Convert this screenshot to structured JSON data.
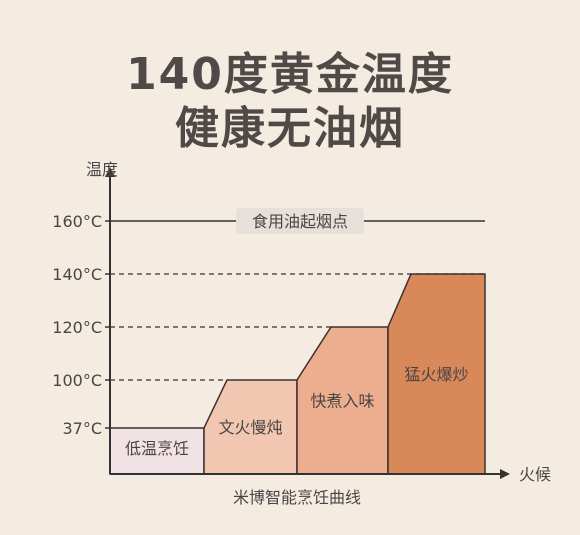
{
  "title_lines": [
    "140度黄金温度",
    "健康无油烟"
  ],
  "chart_data": {
    "type": "area",
    "title": "米博智能烹饪曲线",
    "xlabel": "火候",
    "ylabel": "温度",
    "y_ticks": [
      "37°C",
      "100°C",
      "120°C",
      "140°C",
      "160°C"
    ],
    "y_values": [
      37,
      100,
      120,
      140,
      160
    ],
    "reference_line": {
      "label": "食用油起烟点",
      "value": 160
    },
    "stages": [
      {
        "name": "低温烹饪",
        "temp": 37,
        "color": "#f1e2e5"
      },
      {
        "name": "文火慢炖",
        "temp": 100,
        "color": "#f1c7b1"
      },
      {
        "name": "快煮入味",
        "temp": 120,
        "color": "#ecae8e"
      },
      {
        "name": "猛火爆炒",
        "temp": 140,
        "color": "#d98859"
      }
    ]
  }
}
